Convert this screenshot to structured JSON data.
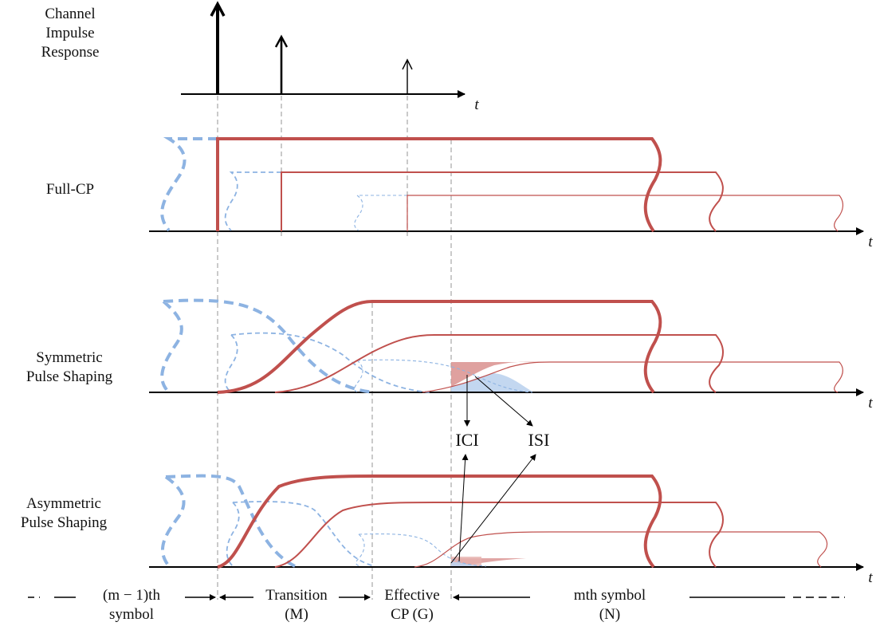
{
  "colors": {
    "red": "#c0504d",
    "blue": "#8db3e2",
    "red_fill": "#d9908e",
    "blue_fill": "#bdd3ee",
    "guide": "#a6a6a6",
    "axis": "#000000"
  },
  "impulse": {
    "label_line1": "Channel",
    "label_line2": "Impulse",
    "label_line3": "Response",
    "axis_var": "t"
  },
  "fullcp": {
    "label": "Full-CP",
    "axis_var": "t"
  },
  "sym": {
    "label_line1": "Symmetric",
    "label_line2": "Pulse Shaping",
    "axis_var": "t"
  },
  "asym": {
    "label_line1": "Asymmetric",
    "label_line2": "Pulse Shaping",
    "axis_var": "t"
  },
  "annot": {
    "ici": "ICI",
    "isi": "ISI"
  },
  "bottom": {
    "prev_line1": "(m − 1)th",
    "prev_line2": "symbol",
    "trans_line1": "Transition",
    "trans_line2": "(M)",
    "cp_line1": "Effective",
    "cp_line2": "CP (G)",
    "cur_line1": "mth symbol",
    "cur_line2": "(N)"
  }
}
